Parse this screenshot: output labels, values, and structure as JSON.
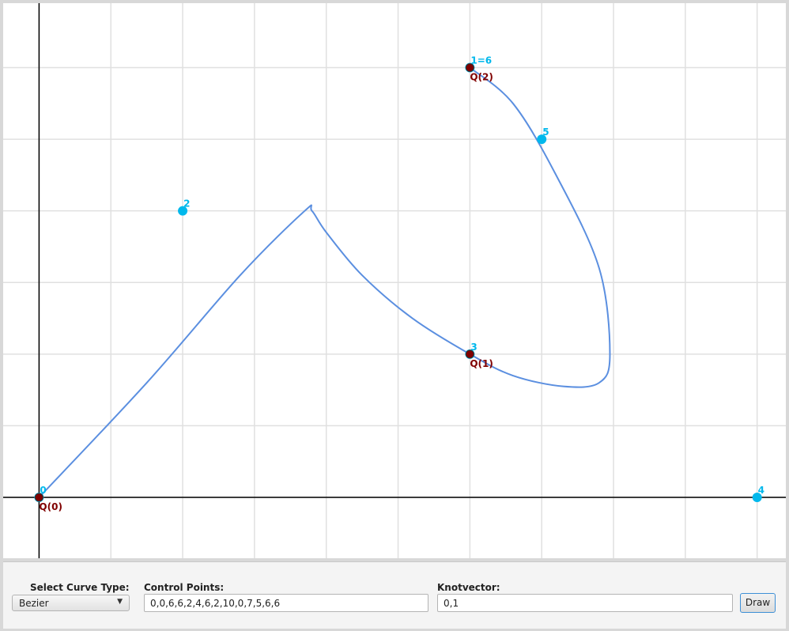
{
  "plot": {
    "x_range": [
      -0.5,
      10.4
    ],
    "y_range": [
      -0.85,
      6.9
    ],
    "control_points": [
      {
        "label": "0",
        "x": 0,
        "y": 0
      },
      {
        "label": "1=6",
        "x": 6,
        "y": 6
      },
      {
        "label": "2",
        "x": 2,
        "y": 4
      },
      {
        "label": "3",
        "x": 6,
        "y": 2
      },
      {
        "label": "4",
        "x": 10,
        "y": 0
      },
      {
        "label": "5",
        "x": 7,
        "y": 5
      }
    ],
    "q_points": [
      {
        "label": "Q(0)",
        "x": 0,
        "y": 0
      },
      {
        "label": "Q(1)",
        "x": 6,
        "y": 2
      },
      {
        "label": "Q(2)",
        "x": 6,
        "y": 6
      }
    ],
    "curve_points": [
      [
        0,
        0
      ],
      [
        1.5,
        1.6
      ],
      [
        2.8,
        3.1
      ],
      [
        3.7,
        4.0
      ],
      [
        3.8,
        4.0
      ],
      [
        4.0,
        3.7
      ],
      [
        4.5,
        3.1
      ],
      [
        5.2,
        2.5
      ],
      [
        6.0,
        2.0
      ],
      [
        6.6,
        1.7
      ],
      [
        7.3,
        1.55
      ],
      [
        7.8,
        1.6
      ],
      [
        7.95,
        2.0
      ],
      [
        7.8,
        3.2
      ],
      [
        7.2,
        4.5
      ],
      [
        6.6,
        5.5
      ],
      [
        6.0,
        6.0
      ]
    ],
    "colors": {
      "curve": "#5b8fe0",
      "control_point": "#00b8ec",
      "q_point": "#800000",
      "grid": "#e0e0e0",
      "axis": "#000000"
    }
  },
  "controls": {
    "curve_type_label": "Select Curve Type:",
    "curve_type_value": "Bezier",
    "control_points_label": "Control Points:",
    "control_points_value": "0,0,6,6,2,4,6,2,10,0,7,5,6,6",
    "knotvector_label": "Knotvector:",
    "knotvector_value": "0,1",
    "draw_label": "Draw"
  }
}
